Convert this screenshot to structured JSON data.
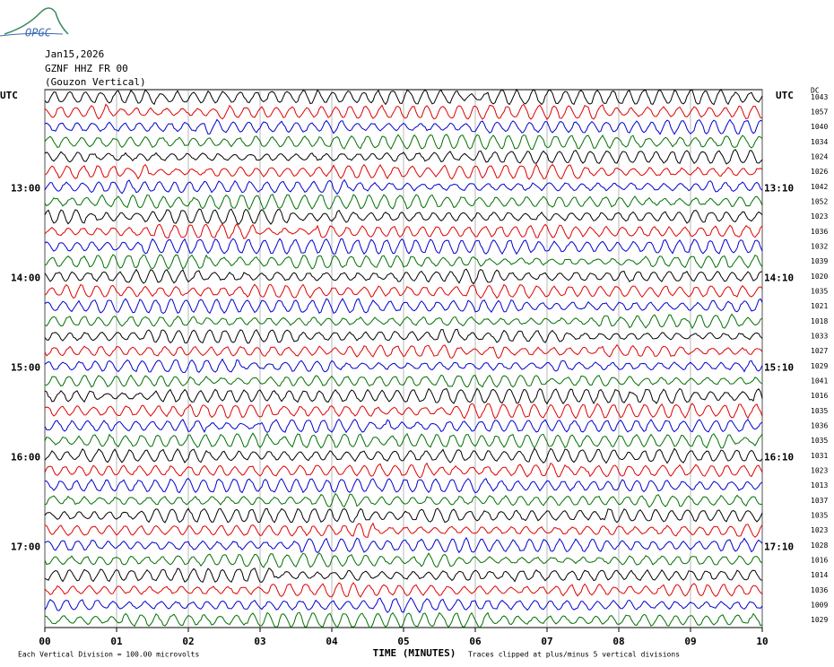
{
  "logo": "OPGC",
  "header": {
    "date": "Jan15,2026",
    "station": "GZNF HHZ FR 00",
    "name": "(Gouzon Vertical)"
  },
  "chart_data": {
    "type": "helicorder",
    "left_axis_label": "UTC",
    "right_axis_label": "UTC",
    "dc_label": "DC",
    "left_labels": [
      null,
      null,
      null,
      null,
      null,
      null,
      "13:00",
      null,
      null,
      null,
      null,
      null,
      "14:00",
      null,
      null,
      null,
      null,
      null,
      "15:00",
      null,
      null,
      null,
      null,
      null,
      "16:00",
      null,
      null,
      null,
      null,
      null,
      "17:00",
      null,
      null,
      null,
      null,
      null
    ],
    "right_labels": [
      null,
      null,
      null,
      null,
      null,
      null,
      "13:10",
      null,
      null,
      null,
      null,
      null,
      "14:10",
      null,
      null,
      null,
      null,
      null,
      "15:10",
      null,
      null,
      null,
      null,
      null,
      "16:10",
      null,
      null,
      null,
      null,
      null,
      "17:10",
      null,
      null,
      null,
      null,
      null
    ],
    "dc_values": [
      1043,
      1057,
      1040,
      1034,
      1024,
      1026,
      1042,
      1052,
      1023,
      1036,
      1032,
      1039,
      1020,
      1035,
      1021,
      1018,
      1033,
      1027,
      1029,
      1041,
      1016,
      1035,
      1036,
      1035,
      1031,
      1023,
      1013,
      1037,
      1035,
      1023,
      1028,
      1016,
      1014,
      1036,
      1009,
      1029
    ],
    "trace_colors": [
      "#000000",
      "#e00000",
      "#0000d0",
      "#007000"
    ],
    "xlim": [
      0,
      10
    ],
    "xticks": [
      {
        "value": 0,
        "label": "00"
      },
      {
        "value": 1,
        "label": "01"
      },
      {
        "value": 2,
        "label": "02"
      },
      {
        "value": 3,
        "label": "03"
      },
      {
        "value": 4,
        "label": "04"
      },
      {
        "value": 5,
        "label": "05"
      },
      {
        "value": 6,
        "label": "06"
      },
      {
        "value": 7,
        "label": "07"
      },
      {
        "value": 8,
        "label": "08"
      },
      {
        "value": 9,
        "label": "09"
      },
      {
        "value": 10,
        "label": "10"
      }
    ],
    "x_label": "TIME (MINUTES)",
    "footer_left": "Each Vertical Division =  100.00 microvolts",
    "footer_right": "Traces clipped at plus/minus 5 vertical divisions"
  }
}
